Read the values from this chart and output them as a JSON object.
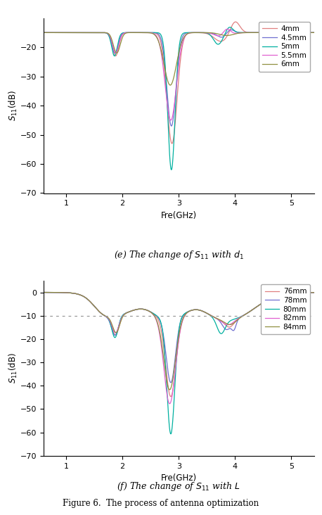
{
  "chart_e": {
    "title": "(e) The change of $S_{11}$ with $d_1$",
    "xlabel": "Fre(GHz)",
    "ylabel": "$S_{11}$(dB)",
    "xlim": [
      0.6,
      5.4
    ],
    "ylim": [
      -70,
      -10
    ],
    "yticks": [
      -70,
      -60,
      -50,
      -40,
      -30,
      -20
    ],
    "xticks": [
      1,
      2,
      3,
      4,
      5
    ],
    "dotted_line": null,
    "series": [
      {
        "label": "4mm",
        "color": "#e08080"
      },
      {
        "label": "4.5mm",
        "color": "#7070d0"
      },
      {
        "label": "5mm",
        "color": "#00b0a0"
      },
      {
        "label": "5.5mm",
        "color": "#e060d0"
      },
      {
        "label": "6mm",
        "color": "#909040"
      }
    ]
  },
  "chart_f": {
    "title": "(f) The change of $S_{11}$ with $L$",
    "xlabel": "Fre(GHz)",
    "ylabel": "$S_{11}$(dB)",
    "xlim": [
      0.6,
      5.4
    ],
    "ylim": [
      -70,
      5
    ],
    "yticks": [
      -70,
      -60,
      -50,
      -40,
      -30,
      -20,
      -10,
      0
    ],
    "xticks": [
      1,
      2,
      3,
      4,
      5
    ],
    "dotted_line": -10,
    "series": [
      {
        "label": "76mm",
        "color": "#e08080"
      },
      {
        "label": "78mm",
        "color": "#7070d0"
      },
      {
        "label": "80mm",
        "color": "#00b0a0"
      },
      {
        "label": "82mm",
        "color": "#e060d0"
      },
      {
        "label": "84mm",
        "color": "#909040"
      }
    ]
  },
  "figure_caption": "Figure 6.  The process of antenna optimization",
  "bg_color": "#ffffff",
  "linewidth": 0.9
}
